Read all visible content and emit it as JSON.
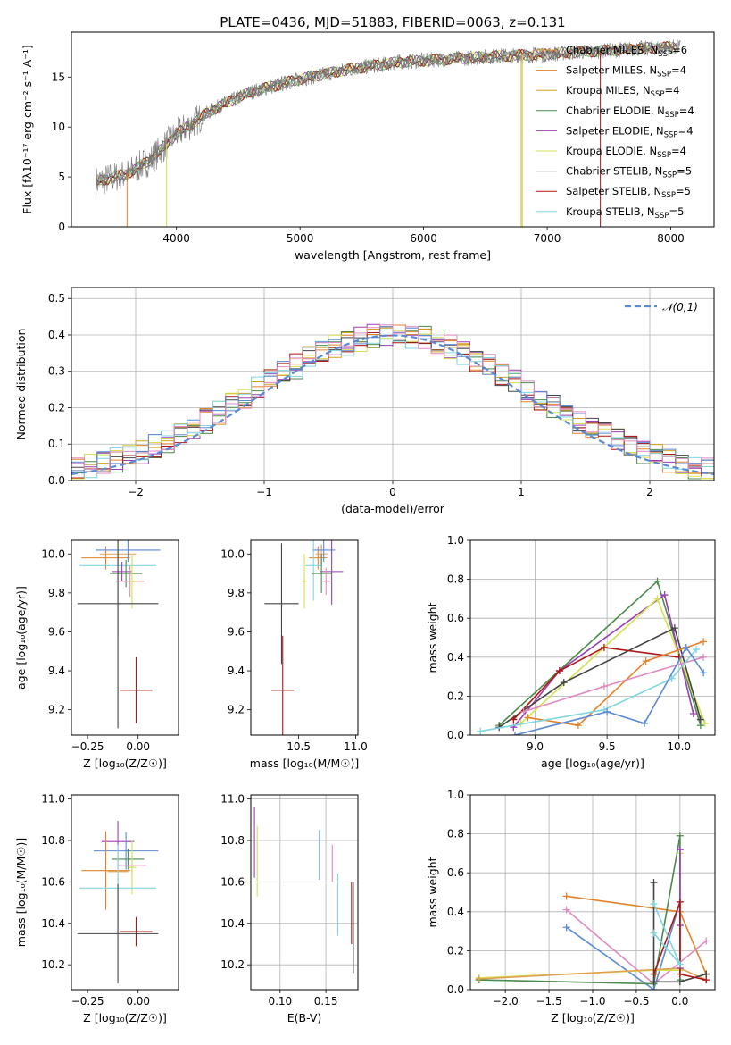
{
  "title": "PLATE=0436, MJD=51883, FIBERID=0063, z=0.131",
  "colors": [
    "#e0a050",
    "#e3822a",
    "#d4a017",
    "#4c8a4c",
    "#9b3fb5",
    "#d4e050",
    "#444444",
    "#b01515",
    "#7fd6e0",
    "#5b8ad4",
    "#e08ac0"
  ],
  "chart_data": [
    {
      "type": "line",
      "id": "spectrum",
      "title": "PLATE=0436, MJD=51883, FIBERID=0063, z=0.131",
      "xlabel": "wavelength [Angstrom, rest frame]",
      "ylabel": "Flux [fλ10⁻¹⁷ erg cm⁻² s⁻¹ A⁻¹]",
      "xlim": [
        3150,
        8350
      ],
      "ylim": [
        0,
        19.5
      ],
      "xticks": [
        4000,
        5000,
        6000,
        7000,
        8000
      ],
      "yticks": [
        0,
        5,
        10,
        15
      ],
      "legend_position": "top-right",
      "continuum": {
        "x": [
          3350,
          3600,
          3800,
          4000,
          4300,
          4600,
          5000,
          5400,
          5800,
          6200,
          6600,
          7000,
          7400,
          7800,
          8050
        ],
        "y": [
          4.5,
          5.3,
          6.8,
          9.3,
          11.8,
          13.5,
          14.8,
          15.8,
          16.5,
          16.8,
          17.1,
          17.3,
          17.6,
          17.9,
          18.0
        ]
      },
      "series": [
        {
          "name": "Chabrier MILES, N_SSP=6",
          "color": "#e0a050"
        },
        {
          "name": "Salpeter MILES, N_SSP=4",
          "color": "#e3822a"
        },
        {
          "name": "Kroupa MILES, N_SSP=4",
          "color": "#d4a017"
        },
        {
          "name": "Chabrier ELODIE, N_SSP=4",
          "color": "#4c8a4c"
        },
        {
          "name": "Salpeter ELODIE, N_SSP=4",
          "color": "#9b3fb5"
        },
        {
          "name": "Kroupa ELODIE, N_SSP=4",
          "color": "#d4e050"
        },
        {
          "name": "Chabrier STELIB, N_SSP=5",
          "color": "#444444"
        },
        {
          "name": "Salpeter STELIB, N_SSP=5",
          "color": "#b01515"
        },
        {
          "name": "Kroupa STELIB, N_SSP=5",
          "color": "#7fd6e0"
        }
      ]
    },
    {
      "type": "histogram",
      "id": "residuals",
      "xlabel": "(data-model)/error",
      "ylabel": "Normed distribution",
      "xlim": [
        -2.5,
        2.5
      ],
      "ylim": [
        0,
        0.53
      ],
      "xticks": [
        -2,
        -1,
        0,
        1,
        2
      ],
      "yticks": [
        0.0,
        0.1,
        0.2,
        0.3,
        0.4,
        0.5
      ],
      "bin_width": 0.1,
      "grid": true,
      "legend": "𝒩(0,1)",
      "legend_position": "top-right",
      "reference_curve": "standard normal"
    },
    {
      "type": "scatter",
      "id": "age-vs-Z",
      "xlabel": "Z [log₁₀(Z/Z☉)]",
      "ylabel": "age  [log₁₀(age/yr)]",
      "xlim": [
        -0.33,
        0.2
      ],
      "ylim": [
        9.07,
        10.07
      ],
      "xticks": [
        -0.25,
        0.0
      ],
      "yticks": [
        9.2,
        9.4,
        9.6,
        9.8,
        10.0
      ],
      "points": [
        {
          "x": -0.16,
          "xerr": 0.12,
          "y": 9.98,
          "yerr": 0.06,
          "color": "#e3822a"
        },
        {
          "x": -0.1,
          "xerr": 0.09,
          "y": 10.0,
          "yerr": 0.05,
          "color": "#e0a050"
        },
        {
          "x": -0.05,
          "xerr": 0.16,
          "y": 10.02,
          "yerr": 0.06,
          "color": "#5b8ad4"
        },
        {
          "x": -0.1,
          "xerr": 0.19,
          "y": 9.94,
          "yerr": 0.36,
          "color": "#7fd6e0"
        },
        {
          "x": -0.08,
          "xerr": 0.05,
          "y": 9.91,
          "yerr": 0.05,
          "color": "#9b3fb5"
        },
        {
          "x": -0.06,
          "xerr": 0.08,
          "y": 9.9,
          "yerr": 0.07,
          "color": "#4c8a4c"
        },
        {
          "x": -0.04,
          "xerr": 0.07,
          "y": 9.86,
          "yerr": 0.08,
          "color": "#e08ac0"
        },
        {
          "x": -0.03,
          "xerr": 0.02,
          "y": 9.86,
          "yerr": 0.14,
          "color": "#d4e050"
        },
        {
          "x": -0.1,
          "xerr": 0.2,
          "y": 9.745,
          "yerr": 0.64,
          "color": "#444444"
        },
        {
          "x": -0.01,
          "xerr": 0.08,
          "y": 9.3,
          "yerr": 0.17,
          "color": "#b01515"
        }
      ]
    },
    {
      "type": "scatter",
      "id": "age-vs-mass",
      "xlabel": "mass [log₁₀(M/M☉)]",
      "ylabel": "",
      "xlim": [
        10.08,
        11.02
      ],
      "ylim": [
        9.07,
        10.07
      ],
      "xticks": [
        10.5,
        11.0
      ],
      "yticks": [
        9.2,
        9.4,
        9.6,
        9.8,
        10.0
      ],
      "points": [
        {
          "x": 10.67,
          "xerr": 0.08,
          "y": 9.98,
          "yerr": 0.06,
          "color": "#e3822a"
        },
        {
          "x": 10.7,
          "xerr": 0.05,
          "y": 10.0,
          "yerr": 0.05,
          "color": "#e0a050"
        },
        {
          "x": 10.72,
          "xerr": 0.1,
          "y": 10.02,
          "yerr": 0.06,
          "color": "#5b8ad4"
        },
        {
          "x": 10.63,
          "xerr": 0.07,
          "y": 9.94,
          "yerr": 0.18,
          "color": "#7fd6e0"
        },
        {
          "x": 10.79,
          "xerr": 0.1,
          "y": 9.91,
          "yerr": 0.17,
          "color": "#9b3fb5"
        },
        {
          "x": 10.7,
          "xerr": 0.09,
          "y": 9.9,
          "yerr": 0.1,
          "color": "#4c8a4c"
        },
        {
          "x": 10.74,
          "xerr": 0.04,
          "y": 9.86,
          "yerr": 0.07,
          "color": "#e08ac0"
        },
        {
          "x": 10.55,
          "xerr": 0.02,
          "y": 9.86,
          "yerr": 0.14,
          "color": "#d4e050"
        },
        {
          "x": 10.35,
          "xerr": 0.15,
          "y": 9.745,
          "yerr": 0.31,
          "color": "#444444"
        },
        {
          "x": 10.36,
          "xerr": 0.1,
          "y": 9.3,
          "yerr": 0.28,
          "color": "#b01515"
        }
      ]
    },
    {
      "type": "line",
      "id": "weight-vs-age",
      "xlabel": "age  [log₁₀(age/yr)]",
      "ylabel": "mass weight",
      "xlim": [
        8.55,
        10.25
      ],
      "ylim": [
        0,
        1.0
      ],
      "xticks": [
        9.0,
        9.5,
        10.0
      ],
      "yticks": [
        0.0,
        0.2,
        0.4,
        0.6,
        0.8,
        1.0
      ],
      "grid": true,
      "series": [
        {
          "color": "#4c8a4c",
          "x": [
            8.75,
            9.85,
            10.15
          ],
          "y": [
            0.05,
            0.79,
            0.05
          ]
        },
        {
          "color": "#9b3fb5",
          "x": [
            8.85,
            9.17,
            9.9,
            10.1
          ],
          "y": [
            0.04,
            0.33,
            0.72,
            0.11
          ]
        },
        {
          "color": "#d4e050",
          "x": [
            8.9,
            9.85,
            10.18
          ],
          "y": [
            0.06,
            0.7,
            0.06
          ]
        },
        {
          "color": "#444444",
          "x": [
            8.75,
            9.2,
            9.97,
            10.15
          ],
          "y": [
            0.04,
            0.27,
            0.55,
            0.08
          ]
        },
        {
          "color": "#b01515",
          "x": [
            8.85,
            9.17,
            9.48,
            10.0
          ],
          "y": [
            0.08,
            0.33,
            0.45,
            0.4
          ]
        },
        {
          "color": "#e3822a",
          "x": [
            8.95,
            9.3,
            9.77,
            10.17
          ],
          "y": [
            0.09,
            0.05,
            0.38,
            0.48
          ]
        },
        {
          "color": "#e08ac0",
          "x": [
            8.92,
            9.48,
            10.17
          ],
          "y": [
            0.12,
            0.25,
            0.4
          ]
        },
        {
          "color": "#7fd6e0",
          "x": [
            8.62,
            9.48,
            9.95,
            10.12
          ],
          "y": [
            0.02,
            0.13,
            0.29,
            0.44
          ]
        },
        {
          "color": "#5b8ad4",
          "x": [
            8.86,
            9.5,
            9.76,
            10.05,
            10.17
          ],
          "y": [
            0.0,
            0.12,
            0.06,
            0.45,
            0.32
          ]
        }
      ]
    },
    {
      "type": "scatter",
      "id": "mass-vs-Z",
      "xlabel": "Z [log₁₀(Z/Z☉)]",
      "ylabel": "mass [log₁₀(M/M☉)]",
      "xlim": [
        -0.33,
        0.2
      ],
      "ylim": [
        10.08,
        11.02
      ],
      "xticks": [
        -0.25,
        0.0
      ],
      "yticks": [
        10.2,
        10.4,
        10.6,
        10.8,
        11.0
      ],
      "points": [
        {
          "x": -0.1,
          "xerr": 0.08,
          "y": 10.795,
          "yerr": 0.1,
          "color": "#9b3fb5"
        },
        {
          "x": -0.06,
          "xerr": 0.16,
          "y": 10.75,
          "yerr": 0.09,
          "color": "#5b8ad4"
        },
        {
          "x": -0.05,
          "xerr": 0.08,
          "y": 10.71,
          "yerr": 0.05,
          "color": "#4c8a4c"
        },
        {
          "x": -0.03,
          "xerr": 0.07,
          "y": 10.68,
          "yerr": 0.05,
          "color": "#e08ac0"
        },
        {
          "x": -0.03,
          "xerr": 0.02,
          "y": 10.67,
          "yerr": 0.13,
          "color": "#d4e050"
        },
        {
          "x": -0.16,
          "xerr": 0.12,
          "y": 10.655,
          "yerr": 0.19,
          "color": "#e3822a"
        },
        {
          "x": -0.1,
          "xerr": 0.05,
          "y": 10.65,
          "yerr": 0.05,
          "color": "#e0a050"
        },
        {
          "x": -0.1,
          "xerr": 0.19,
          "y": 10.57,
          "yerr": 0.21,
          "color": "#7fd6e0"
        },
        {
          "x": -0.01,
          "xerr": 0.08,
          "y": 10.36,
          "yerr": 0.07,
          "color": "#b01515"
        },
        {
          "x": -0.1,
          "xerr": 0.2,
          "y": 10.35,
          "yerr": 0.24,
          "color": "#444444"
        }
      ]
    },
    {
      "type": "scatter",
      "id": "mass-vs-EBV",
      "xlabel": "E(B-V)",
      "ylabel": "",
      "xlim": [
        0.068,
        0.185
      ],
      "ylim": [
        10.08,
        11.02
      ],
      "xticks": [
        0.1,
        0.15
      ],
      "yticks": [
        10.2,
        10.4,
        10.6,
        10.8,
        11.0
      ],
      "grid": true,
      "points": [
        {
          "x": 0.072,
          "y": 10.79,
          "yerr": 0.17,
          "color": "#9b3fb5"
        },
        {
          "x": 0.075,
          "y": 10.7,
          "yerr": 0.17,
          "color": "#d4e050"
        },
        {
          "x": 0.143,
          "y": 10.73,
          "yerr": 0.12,
          "color": "#5b8ad4"
        },
        {
          "x": 0.157,
          "y": 10.69,
          "yerr": 0.09,
          "color": "#e08ac0"
        },
        {
          "x": 0.163,
          "y": 10.49,
          "yerr": 0.15,
          "color": "#7fd6e0"
        },
        {
          "x": 0.178,
          "y": 10.45,
          "yerr": 0.15,
          "color": "#b01515"
        },
        {
          "x": 0.18,
          "y": 10.38,
          "yerr": 0.22,
          "color": "#444444"
        }
      ]
    },
    {
      "type": "line",
      "id": "weight-vs-Z",
      "xlabel": "Z [log₁₀(Z/Z☉)]",
      "ylabel": "mass weight",
      "xlim": [
        -2.4,
        0.4
      ],
      "ylim": [
        0,
        1.0
      ],
      "xticks": [
        -2.0,
        -1.5,
        -1.0,
        -0.5,
        0.0
      ],
      "yticks": [
        0.0,
        0.2,
        0.4,
        0.6,
        0.8,
        1.0
      ],
      "grid": true,
      "series": [
        {
          "color": "#e3822a",
          "x": [
            -1.3,
            0.0,
            0.3
          ],
          "y": [
            0.48,
            0.4,
            0.08
          ]
        },
        {
          "color": "#e08ac0",
          "x": [
            -1.3,
            -0.3,
            0.3
          ],
          "y": [
            0.41,
            0.03,
            0.25
          ]
        },
        {
          "color": "#5b8ad4",
          "x": [
            -1.3,
            -0.3,
            0.0
          ],
          "y": [
            0.32,
            0.0,
            0.45
          ]
        },
        {
          "color": "#d4e050",
          "x": [
            -2.3,
            -0.3,
            0.0,
            0.0
          ],
          "y": [
            0.06,
            0.1,
            0.1,
            0.7
          ]
        },
        {
          "color": "#4c8a4c",
          "x": [
            -2.3,
            -0.3,
            0.0,
            0.0
          ],
          "y": [
            0.05,
            0.03,
            0.79,
            0.05
          ]
        },
        {
          "color": "#e0a050",
          "x": [
            -2.3,
            0.0,
            0.3
          ],
          "y": [
            0.055,
            0.11,
            0.05
          ]
        },
        {
          "color": "#444444",
          "x": [
            -0.3,
            -0.3,
            0.0,
            0.3
          ],
          "y": [
            0.55,
            0.04,
            0.04,
            0.08
          ]
        },
        {
          "color": "#9b3fb5",
          "x": [
            0.0,
            0.0,
            0.0
          ],
          "y": [
            0.72,
            0.11,
            0.33
          ]
        },
        {
          "color": "#b01515",
          "x": [
            -0.3,
            0.0,
            0.0,
            0.3
          ],
          "y": [
            0.08,
            0.45,
            0.08,
            0.05
          ]
        },
        {
          "color": "#7fd6e0",
          "x": [
            -0.3,
            0.0,
            -0.3
          ],
          "y": [
            0.44,
            0.13,
            0.29
          ]
        }
      ]
    }
  ]
}
